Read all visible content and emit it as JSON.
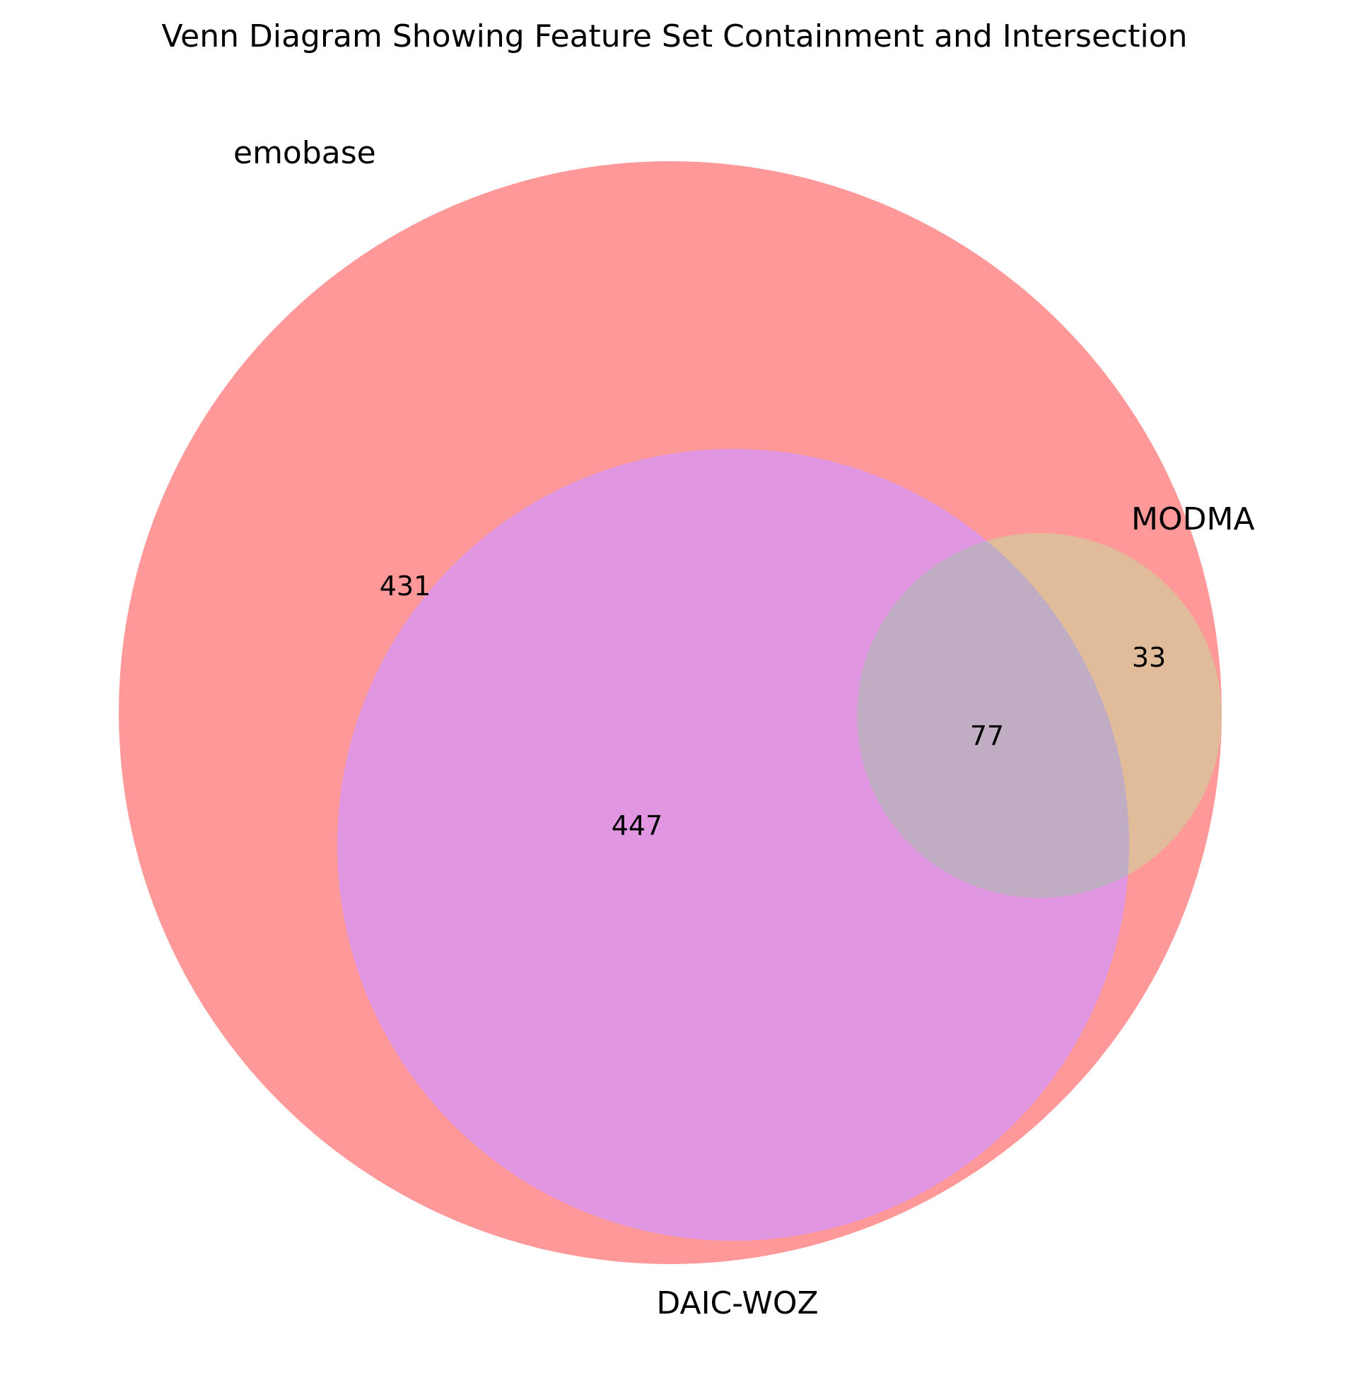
{
  "title": "Venn Diagram Showing Feature Set Containment and Intersection",
  "sets": {
    "emobase": {
      "label": "emobase",
      "color": "#ff9999"
    },
    "daic": {
      "label": "DAIC-WOZ",
      "color": "#e096e0"
    },
    "modma": {
      "label": "MODMA",
      "color": "#e0bc9a"
    }
  },
  "overlap_color": "#c0adc3",
  "regions": {
    "emobase_only": "431",
    "emobase_daic": "447",
    "emobase_daic_modma": "77",
    "emobase_modma": "33"
  }
}
